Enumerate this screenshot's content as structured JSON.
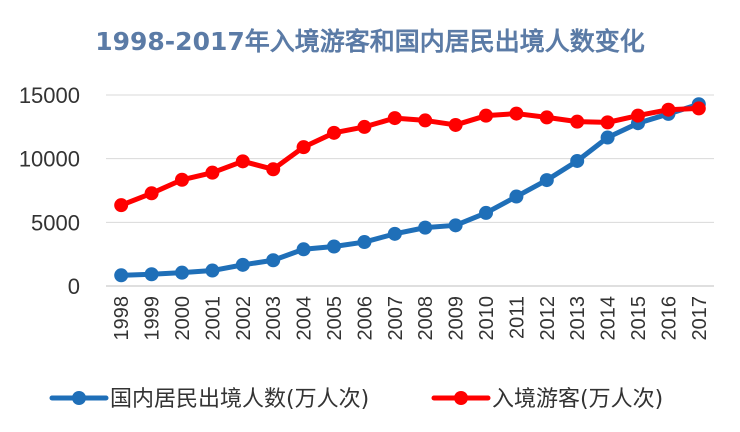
{
  "colors": {
    "series_blue": "#1f6fb8",
    "series_red": "#ff0000",
    "title": "#5b7ba6"
  },
  "chart_data": {
    "type": "line",
    "title": "1998-2017年入境游客和国内居民出境人数变化",
    "xlabel": "",
    "ylabel": "",
    "ylim": [
      0,
      15000
    ],
    "yticks": [
      "0",
      "5000",
      "10000",
      "15000"
    ],
    "grid": true,
    "legend_position": "bottom",
    "x": [
      "1998",
      "1999",
      "2000",
      "2001",
      "2002",
      "2003",
      "2004",
      "2005",
      "2006",
      "2007",
      "2008",
      "2009",
      "2010",
      "2011",
      "2012",
      "2013",
      "2014",
      "2015",
      "2016",
      "2017"
    ],
    "series": [
      {
        "name": "国内居民出境人数(万人次)",
        "color": "#1f6fb8",
        "values": [
          842,
          923,
          1047,
          1213,
          1660,
          2022,
          2885,
          3103,
          3452,
          4095,
          4584,
          4766,
          5739,
          7025,
          8318,
          9819,
          11659,
          12786,
          13513,
          14273
        ]
      },
      {
        "name": "入境游客(万人次)",
        "color": "#ff0000",
        "values": [
          6348,
          7280,
          8344,
          8901,
          9791,
          9166,
          10904,
          12029,
          12494,
          13187,
          13003,
          12648,
          13376,
          13542,
          13241,
          12908,
          12850,
          13382,
          13844,
          13948
        ]
      }
    ]
  }
}
